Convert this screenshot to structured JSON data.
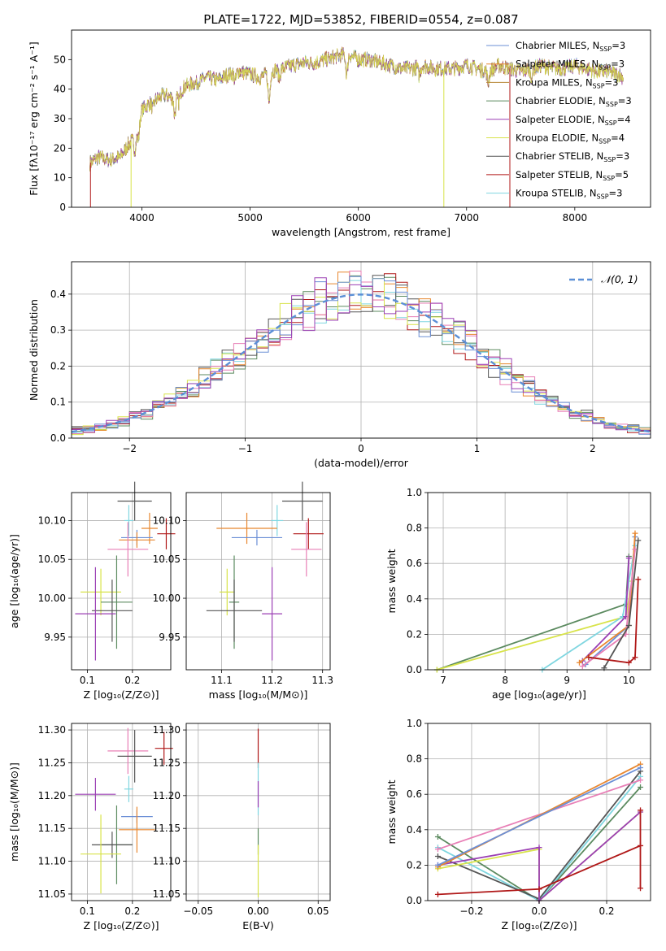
{
  "colors": {
    "chabrier_miles": "#6b8fd6",
    "salpeter_miles": "#e8872f",
    "kroupa_miles": "#b8893a",
    "chabrier_elodie": "#5b8a5f",
    "salpeter_elodie": "#9b3fb4",
    "kroupa_elodie": "#d8e34a",
    "chabrier_stelib": "#555555",
    "salpeter_stelib": "#b01818",
    "kroupa_stelib": "#7fd6e0",
    "pink": "#e87fb6",
    "gaussian": "#5b8fd6"
  },
  "chart_data": [
    {
      "id": "spectrum",
      "type": "line",
      "title": "PLATE=1722, MJD=53852, FIBERID=0554, z=0.087",
      "xlabel": "wavelength [Angstrom, rest frame]",
      "ylabel": "Flux [fλ10⁻¹⁷ erg cm⁻² s⁻¹ A⁻¹]",
      "xlim": [
        3350,
        8700
      ],
      "ylim": [
        0,
        60
      ],
      "xticks": [
        "4000",
        "5000",
        "6000",
        "7000",
        "8000"
      ],
      "yticks": [
        "0",
        "10",
        "20",
        "30",
        "40",
        "50"
      ],
      "legend_position": "top-right",
      "legend": [
        {
          "label": "Chabrier MILES, N",
          "sub": "SSP",
          "suffix": "=3",
          "color_key": "chabrier_miles"
        },
        {
          "label": "Salpeter MILES, N",
          "sub": "SSP",
          "suffix": "=3",
          "color_key": "salpeter_miles"
        },
        {
          "label": "Kroupa MILES, N",
          "sub": "SSP",
          "suffix": "=3",
          "color_key": "kroupa_miles"
        },
        {
          "label": "Chabrier ELODIE, N",
          "sub": "SSP",
          "suffix": "=3",
          "color_key": "chabrier_elodie"
        },
        {
          "label": "Salpeter ELODIE, N",
          "sub": "SSP",
          "suffix": "=4",
          "color_key": "salpeter_elodie"
        },
        {
          "label": "Kroupa ELODIE, N",
          "sub": "SSP",
          "suffix": "=4",
          "color_key": "kroupa_elodie"
        },
        {
          "label": "Chabrier STELIB, N",
          "sub": "SSP",
          "suffix": "=3",
          "color_key": "chabrier_stelib"
        },
        {
          "label": "Salpeter STELIB, N",
          "sub": "SSP",
          "suffix": "=5",
          "color_key": "salpeter_stelib"
        },
        {
          "label": "Kroupa STELIB, N",
          "sub": "SSP",
          "suffix": "=3",
          "color_key": "kroupa_stelib"
        }
      ],
      "spectrum_knots": [
        [
          3520,
          15
        ],
        [
          3600,
          17
        ],
        [
          3700,
          16
        ],
        [
          3800,
          17
        ],
        [
          3870,
          21
        ],
        [
          3950,
          24
        ],
        [
          4000,
          33
        ],
        [
          4100,
          36
        ],
        [
          4200,
          38
        ],
        [
          4300,
          37
        ],
        [
          4400,
          41
        ],
        [
          4500,
          42
        ],
        [
          4600,
          44
        ],
        [
          4700,
          43
        ],
        [
          4800,
          45
        ],
        [
          4900,
          46
        ],
        [
          5000,
          45
        ],
        [
          5100,
          44
        ],
        [
          5200,
          46
        ],
        [
          5300,
          47
        ],
        [
          5400,
          48
        ],
        [
          5500,
          49
        ],
        [
          5600,
          49
        ],
        [
          5700,
          50
        ],
        [
          5800,
          51
        ],
        [
          5900,
          52
        ],
        [
          6000,
          50
        ],
        [
          6100,
          50
        ],
        [
          6200,
          49
        ],
        [
          6300,
          48
        ],
        [
          6400,
          47
        ],
        [
          6500,
          47
        ],
        [
          6600,
          48
        ],
        [
          6700,
          47
        ],
        [
          6800,
          47
        ],
        [
          6900,
          47
        ],
        [
          7000,
          48
        ],
        [
          7100,
          47
        ],
        [
          7200,
          46
        ],
        [
          7300,
          48
        ],
        [
          7400,
          47
        ],
        [
          7500,
          46
        ],
        [
          7600,
          47
        ],
        [
          7700,
          48
        ],
        [
          7800,
          47
        ],
        [
          7900,
          47
        ],
        [
          8000,
          48
        ],
        [
          8100,
          47
        ],
        [
          8200,
          46
        ],
        [
          8300,
          46
        ],
        [
          8400,
          45
        ],
        [
          8450,
          44
        ]
      ],
      "absorption_lines": [
        [
          3934,
          -4
        ],
        [
          3969,
          -4
        ],
        [
          4102,
          -3
        ],
        [
          4304,
          -6
        ],
        [
          4340,
          -3
        ],
        [
          4861,
          -3
        ],
        [
          5175,
          -10
        ],
        [
          5270,
          -3
        ],
        [
          5893,
          -7
        ],
        [
          6563,
          -3
        ],
        [
          7200,
          -4
        ],
        [
          7600,
          -3
        ]
      ],
      "spikes": [
        [
          3525,
          0,
          "salpeter_stelib"
        ],
        [
          3900,
          0,
          "kroupa_elodie"
        ],
        [
          6790,
          0,
          "kroupa_elodie"
        ],
        [
          7400,
          0,
          "salpeter_stelib"
        ]
      ]
    },
    {
      "id": "residuals",
      "type": "step",
      "xlabel": "(data-model)/error",
      "ylabel": "Normed distribution",
      "xlim": [
        -2.5,
        2.5
      ],
      "ylim": [
        0,
        0.49
      ],
      "xticks": [
        "−2",
        "−1",
        "0",
        "1",
        "2"
      ],
      "yticks": [
        "0.0",
        "0.1",
        "0.2",
        "0.3",
        "0.4"
      ],
      "legend_position": "top-right",
      "gaussian_label": "𝒩(0, 1)",
      "bin_width": 0.1
    },
    {
      "id": "age_vs_Z",
      "type": "errorbar",
      "xlabel": "Z [log₁₀(Z/Z⊙)]",
      "ylabel": "age  [log₁₀(age/yr)]",
      "xlim": [
        0.065,
        0.285
      ],
      "ylim": [
        9.908,
        10.136
      ],
      "xticks": [
        "0.1",
        "0.2"
      ],
      "yticks": [
        "9.95",
        "10.00",
        "10.05",
        "10.10"
      ],
      "points": [
        {
          "c": "chabrier_stelib",
          "x": 0.205,
          "xerr": 0.038,
          "y": 10.125,
          "yerr": 0.025
        },
        {
          "c": "kroupa_stelib",
          "x": 0.192,
          "xerr": 0.01,
          "y": 10.1,
          "yerr": 0.02
        },
        {
          "c": "salpeter_miles",
          "x": 0.238,
          "xerr": 0.018,
          "y": 10.09,
          "yerr": 0.02
        },
        {
          "c": "salpeter_stelib",
          "x": 0.275,
          "xerr": 0.02,
          "y": 10.083,
          "yerr": 0.02
        },
        {
          "c": "chabrier_miles",
          "x": 0.21,
          "xerr": 0.035,
          "y": 10.078,
          "yerr": 0.01
        },
        {
          "c": "salpeter_miles",
          "x": 0.21,
          "xerr": 0.04,
          "y": 10.075,
          "yerr": 0.01
        },
        {
          "c": "pink",
          "x": 0.19,
          "xerr": 0.045,
          "y": 10.063,
          "yerr": 0.035
        },
        {
          "c": "kroupa_elodie",
          "x": 0.13,
          "xerr": 0.045,
          "y": 10.008,
          "yerr": 0.03
        },
        {
          "c": "chabrier_elodie",
          "x": 0.165,
          "xerr": 0.035,
          "y": 9.995,
          "yerr": 0.06
        },
        {
          "c": "chabrier_stelib",
          "x": 0.155,
          "xerr": 0.045,
          "y": 9.984,
          "yerr": 0.04
        },
        {
          "c": "salpeter_elodie",
          "x": 0.118,
          "xerr": 0.045,
          "y": 9.98,
          "yerr": 0.06
        }
      ]
    },
    {
      "id": "age_vs_mass",
      "type": "errorbar",
      "xlabel": "mass [log₁₀(M/M⊙)]",
      "ylabel": "",
      "xlim": [
        11.03,
        11.315
      ],
      "ylim": [
        9.908,
        10.136
      ],
      "xticks": [
        "11.1",
        "11.2",
        "11.3"
      ],
      "yticks": [
        "9.95",
        "10.00",
        "10.05",
        "10.10"
      ],
      "points": [
        {
          "c": "chabrier_stelib",
          "x": 11.26,
          "xerr": 0.04,
          "y": 10.125,
          "yerr": 0.025
        },
        {
          "c": "kroupa_stelib",
          "x": 11.21,
          "xerr": 0.012,
          "y": 10.1,
          "yerr": 0.02
        },
        {
          "c": "salpeter_miles",
          "x": 11.15,
          "xerr": 0.06,
          "y": 10.09,
          "yerr": 0.02
        },
        {
          "c": "salpeter_stelib",
          "x": 11.272,
          "xerr": 0.03,
          "y": 10.083,
          "yerr": 0.02
        },
        {
          "c": "chabrier_miles",
          "x": 11.17,
          "xerr": 0.05,
          "y": 10.078,
          "yerr": 0.01
        },
        {
          "c": "pink",
          "x": 11.268,
          "xerr": 0.03,
          "y": 10.063,
          "yerr": 0.035
        },
        {
          "c": "kroupa_elodie",
          "x": 11.111,
          "xerr": 0.015,
          "y": 10.008,
          "yerr": 0.03
        },
        {
          "c": "chabrier_elodie",
          "x": 11.125,
          "xerr": 0.01,
          "y": 9.995,
          "yerr": 0.06
        },
        {
          "c": "chabrier_stelib",
          "x": 11.125,
          "xerr": 0.055,
          "y": 9.984,
          "yerr": 0.04
        },
        {
          "c": "salpeter_elodie",
          "x": 11.2,
          "xerr": 0.02,
          "y": 9.98,
          "yerr": 0.06
        }
      ]
    },
    {
      "id": "weight_vs_age",
      "type": "line",
      "xlabel": "age  [log₁₀(age/yr)]",
      "ylabel": "mass weight",
      "xlim": [
        6.75,
        10.35
      ],
      "ylim": [
        0,
        1
      ],
      "xticks": [
        "7",
        "8",
        "9",
        "10"
      ],
      "yticks": [
        "0.0",
        "0.2",
        "0.4",
        "0.6",
        "0.8",
        "1.0"
      ],
      "series": [
        {
          "c": "chabrier_elodie",
          "points": [
            [
              6.9,
              0.0
            ],
            [
              9.95,
              0.37
            ],
            [
              10.0,
              0.64
            ]
          ]
        },
        {
          "c": "kroupa_elodie",
          "points": [
            [
              6.9,
              0.0
            ],
            [
              9.95,
              0.3
            ],
            [
              10.05,
              0.5
            ]
          ]
        },
        {
          "c": "kroupa_stelib",
          "points": [
            [
              8.6,
              0.0
            ],
            [
              9.9,
              0.3
            ],
            [
              10.1,
              0.7
            ]
          ]
        },
        {
          "c": "salpeter_elodie",
          "points": [
            [
              9.25,
              0.05
            ],
            [
              9.95,
              0.3
            ],
            [
              10.0,
              0.63
            ]
          ]
        },
        {
          "c": "chabrier_miles",
          "points": [
            [
              9.3,
              0.03
            ],
            [
              10.0,
              0.25
            ],
            [
              10.1,
              0.75
            ]
          ]
        },
        {
          "c": "salpeter_miles",
          "points": [
            [
              9.2,
              0.04
            ],
            [
              10.0,
              0.25
            ],
            [
              10.1,
              0.77
            ]
          ]
        },
        {
          "c": "pink",
          "points": [
            [
              9.25,
              0.02
            ],
            [
              9.95,
              0.2
            ],
            [
              10.1,
              0.68
            ]
          ]
        },
        {
          "c": "chabrier_stelib",
          "points": [
            [
              9.6,
              0.01
            ],
            [
              10.0,
              0.25
            ],
            [
              10.15,
              0.73
            ]
          ]
        },
        {
          "c": "salpeter_stelib",
          "points": [
            [
              9.35,
              0.07
            ],
            [
              10.0,
              0.04
            ],
            [
              10.1,
              0.07
            ],
            [
              10.15,
              0.51
            ]
          ]
        }
      ]
    },
    {
      "id": "mass_vs_Z",
      "type": "errorbar",
      "xlabel": "Z [log₁₀(Z/Z⊙)]",
      "ylabel": "mass [log₁₀(M/M⊙)]",
      "xlim": [
        0.065,
        0.285
      ],
      "ylim": [
        11.04,
        11.31
      ],
      "xticks": [
        "0.1",
        "0.2"
      ],
      "yticks": [
        "11.05",
        "11.10",
        "11.15",
        "11.20",
        "11.25",
        "11.30"
      ],
      "points": [
        {
          "c": "salpeter_stelib",
          "x": 0.27,
          "xerr": 0.02,
          "y": 11.272,
          "yerr": 0.025
        },
        {
          "c": "pink",
          "x": 0.19,
          "xerr": 0.045,
          "y": 11.268,
          "yerr": 0.035
        },
        {
          "c": "chabrier_stelib",
          "x": 0.205,
          "xerr": 0.038,
          "y": 11.26,
          "yerr": 0.04
        },
        {
          "c": "kroupa_stelib",
          "x": 0.192,
          "xerr": 0.01,
          "y": 11.21,
          "yerr": 0.02
        },
        {
          "c": "salpeter_elodie",
          "x": 0.118,
          "xerr": 0.045,
          "y": 11.202,
          "yerr": 0.025
        },
        {
          "c": "chabrier_miles",
          "x": 0.21,
          "xerr": 0.035,
          "y": 11.168,
          "yerr": 0.01
        },
        {
          "c": "salpeter_miles",
          "x": 0.21,
          "xerr": 0.04,
          "y": 11.148,
          "yerr": 0.035
        },
        {
          "c": "chabrier_elodie",
          "x": 0.165,
          "xerr": 0.035,
          "y": 11.125,
          "yerr": 0.06
        },
        {
          "c": "chabrier_stelib",
          "x": 0.155,
          "xerr": 0.045,
          "y": 11.125,
          "yerr": 0.02
        },
        {
          "c": "kroupa_elodie",
          "x": 0.13,
          "xerr": 0.045,
          "y": 11.111,
          "yerr": 0.06
        }
      ]
    },
    {
      "id": "mass_vs_ebv",
      "type": "errorbar",
      "xlabel": "E(B-V)",
      "ylabel": "",
      "xlim": [
        -0.06,
        0.06
      ],
      "ylim": [
        11.04,
        11.31
      ],
      "xticks": [
        "−0.05",
        "0.00",
        "0.05"
      ],
      "yticks": [
        "11.05",
        "11.10",
        "11.15",
        "11.20",
        "11.25",
        "11.30"
      ],
      "points": [
        {
          "c": "salpeter_stelib",
          "x": 0.0,
          "xerr": 0,
          "y": 11.272,
          "yerr": 0.03
        },
        {
          "c": "kroupa_stelib",
          "x": 0.0,
          "xerr": 0,
          "y": 11.21,
          "yerr": 0.04
        },
        {
          "c": "salpeter_elodie",
          "x": 0.0,
          "xerr": 0,
          "y": 11.202,
          "yerr": 0.02
        },
        {
          "c": "chabrier_elodie",
          "x": 0.0,
          "xerr": 0,
          "y": 11.13,
          "yerr": 0.02
        },
        {
          "c": "kroupa_elodie",
          "x": 0.0,
          "xerr": 0,
          "y": 11.085,
          "yerr": 0.04
        }
      ]
    },
    {
      "id": "weight_vs_Z",
      "type": "line",
      "xlabel": "Z [log₁₀(Z/Z⊙)]",
      "ylabel": "mass weight",
      "xlim": [
        -0.33,
        0.33
      ],
      "ylim": [
        0,
        1
      ],
      "xticks": [
        "−0.2",
        "0.0",
        "0.2"
      ],
      "yticks": [
        "0.0",
        "0.2",
        "0.4",
        "0.6",
        "0.8",
        "1.0"
      ],
      "series": [
        {
          "c": "chabrier_elodie",
          "points": [
            [
              -0.3,
              0.36
            ],
            [
              0.0,
              0.0
            ],
            [
              0.3,
              0.64
            ]
          ]
        },
        {
          "c": "kroupa_stelib",
          "points": [
            [
              -0.3,
              0.3
            ],
            [
              0.0,
              0.0
            ],
            [
              0.3,
              0.7
            ]
          ]
        },
        {
          "c": "chabrier_stelib",
          "points": [
            [
              -0.3,
              0.25
            ],
            [
              0.0,
              0.01
            ],
            [
              0.3,
              0.73
            ]
          ]
        },
        {
          "c": "kroupa_elodie",
          "points": [
            [
              -0.3,
              0.18
            ],
            [
              0.0,
              0.29
            ],
            [
              0.0,
              0.0
            ],
            [
              0.3,
              0.5
            ]
          ]
        },
        {
          "c": "salpeter_elodie",
          "points": [
            [
              -0.3,
              0.2
            ],
            [
              0.0,
              0.3
            ],
            [
              0.0,
              0.0
            ],
            [
              0.3,
              0.5
            ]
          ]
        },
        {
          "c": "pink",
          "points": [
            [
              -0.3,
              0.29
            ],
            [
              0.3,
              0.68
            ]
          ]
        },
        {
          "c": "salpeter_miles",
          "points": [
            [
              -0.3,
              0.19
            ],
            [
              0.3,
              0.77
            ]
          ]
        },
        {
          "c": "chabrier_miles",
          "points": [
            [
              -0.3,
              0.2
            ],
            [
              0.3,
              0.75
            ]
          ]
        },
        {
          "c": "salpeter_stelib",
          "points": [
            [
              -0.3,
              0.035
            ],
            [
              0.0,
              0.065
            ],
            [
              0.3,
              0.31
            ],
            [
              0.3,
              0.07
            ],
            [
              0.3,
              0.51
            ]
          ]
        }
      ]
    }
  ]
}
